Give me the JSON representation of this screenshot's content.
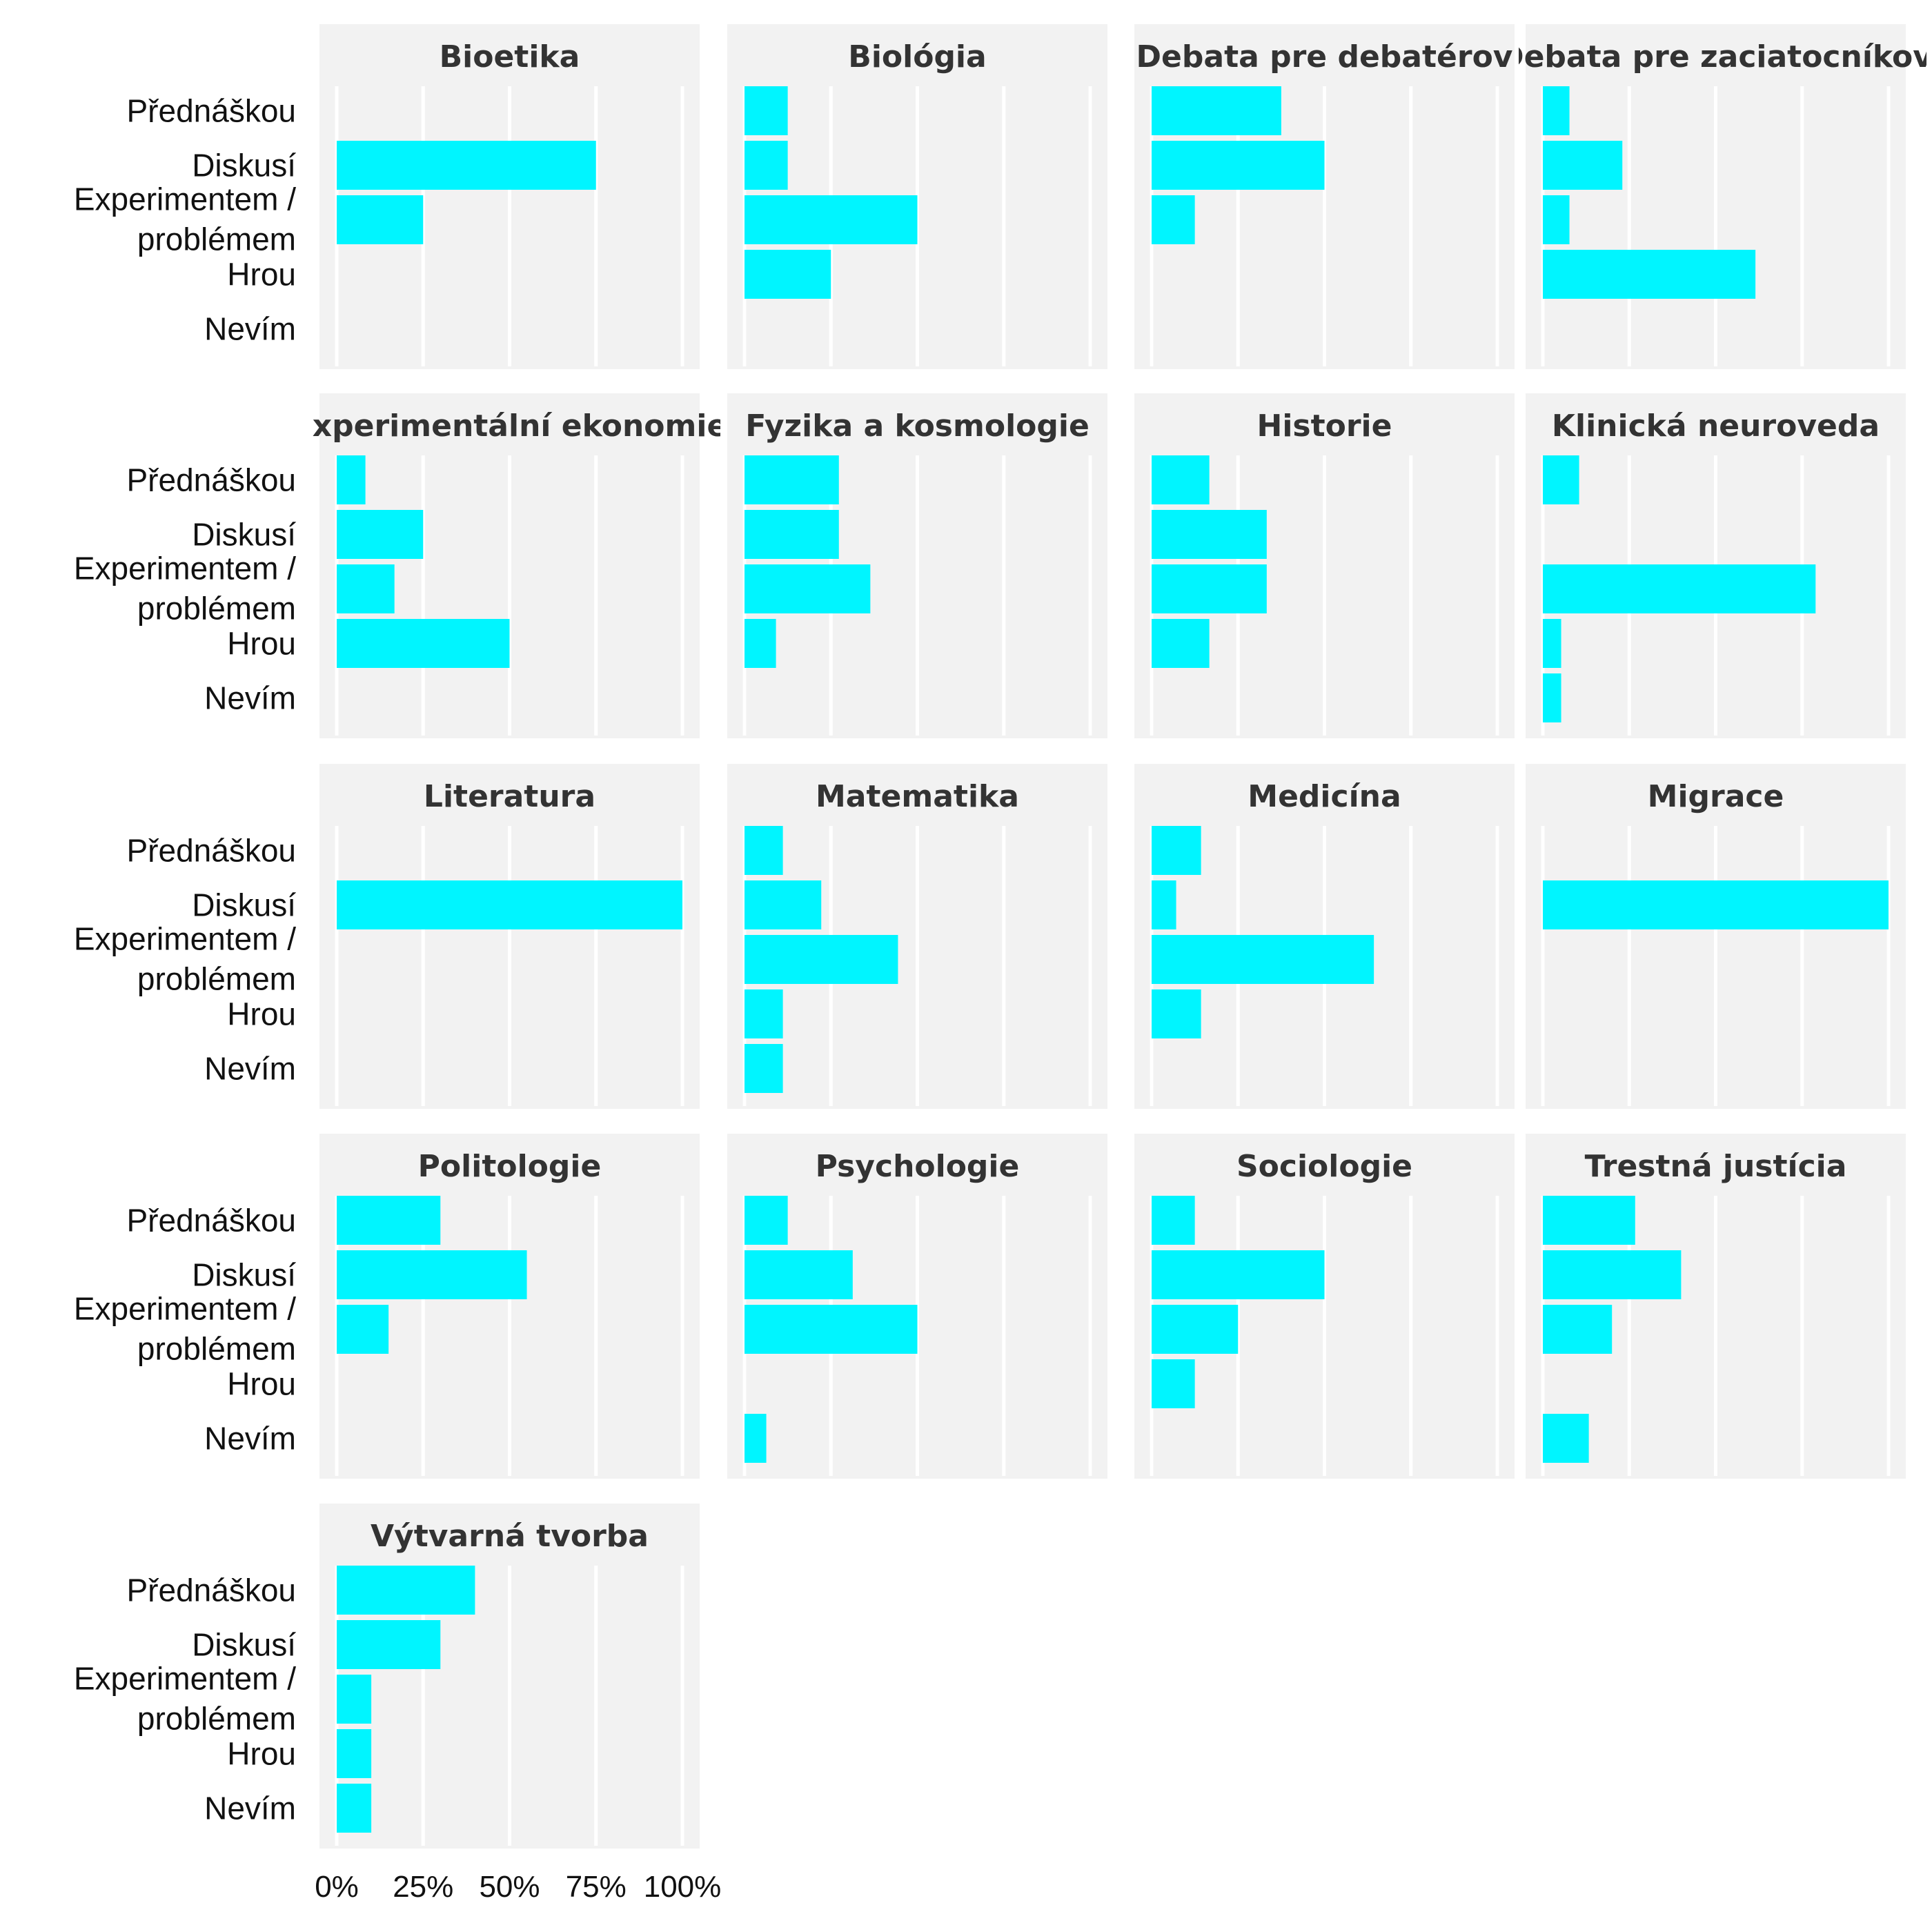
{
  "chart_data": {
    "type": "bar",
    "orientation": "horizontal",
    "facet_columns": 4,
    "categories": [
      "Přednáškou",
      "Diskusí",
      "Experimentem /\nproblémem",
      "Hrou",
      "Nevím"
    ],
    "x_ticks": [
      "0%",
      "25%",
      "50%",
      "75%",
      "100%"
    ],
    "xlim": [
      0,
      100
    ],
    "bar_color": "#00F5FF",
    "panel_bg": "#F2F2F2",
    "grid": true,
    "facets": [
      {
        "title": "Bioetika",
        "values": [
          0,
          75,
          25,
          0,
          0
        ]
      },
      {
        "title": "Biológia",
        "values": [
          12.5,
          12.5,
          50,
          25,
          0
        ]
      },
      {
        "title": "Debata pre debatérov",
        "values": [
          37.5,
          50,
          12.5,
          0,
          0
        ]
      },
      {
        "title": "Debata pre zaciatocníkov",
        "values": [
          7.7,
          23,
          7.7,
          61.5,
          0
        ]
      },
      {
        "title": "Experimentální ekonomie",
        "values": [
          8.3,
          25,
          16.7,
          50,
          0
        ]
      },
      {
        "title": "Fyzika a kosmologie",
        "values": [
          27.3,
          27.3,
          36.4,
          9.1,
          0
        ]
      },
      {
        "title": "Historie",
        "values": [
          16.7,
          33.3,
          33.3,
          16.7,
          0
        ]
      },
      {
        "title": "Klinická neuroveda",
        "values": [
          10.5,
          0,
          78.9,
          5.3,
          5.3
        ]
      },
      {
        "title": "Literatura",
        "values": [
          0,
          100,
          0,
          0,
          0
        ]
      },
      {
        "title": "Matematika",
        "values": [
          11.1,
          22.2,
          44.4,
          11.1,
          11.1
        ]
      },
      {
        "title": "Medicína",
        "values": [
          14.3,
          7.1,
          64.3,
          14.3,
          0
        ]
      },
      {
        "title": "Migrace",
        "values": [
          0,
          100,
          0,
          0,
          0
        ]
      },
      {
        "title": "Politologie",
        "values": [
          30,
          55,
          15,
          0,
          0
        ]
      },
      {
        "title": "Psychologie",
        "values": [
          12.5,
          31.3,
          50,
          0,
          6.3
        ]
      },
      {
        "title": "Sociologie",
        "values": [
          12.5,
          50,
          25,
          12.5,
          0
        ]
      },
      {
        "title": "Trestná justícia",
        "values": [
          26.7,
          40,
          20,
          0,
          13.3
        ]
      },
      {
        "title": "Výtvarná tvorba",
        "values": [
          40,
          30,
          10,
          10,
          10
        ]
      }
    ]
  }
}
